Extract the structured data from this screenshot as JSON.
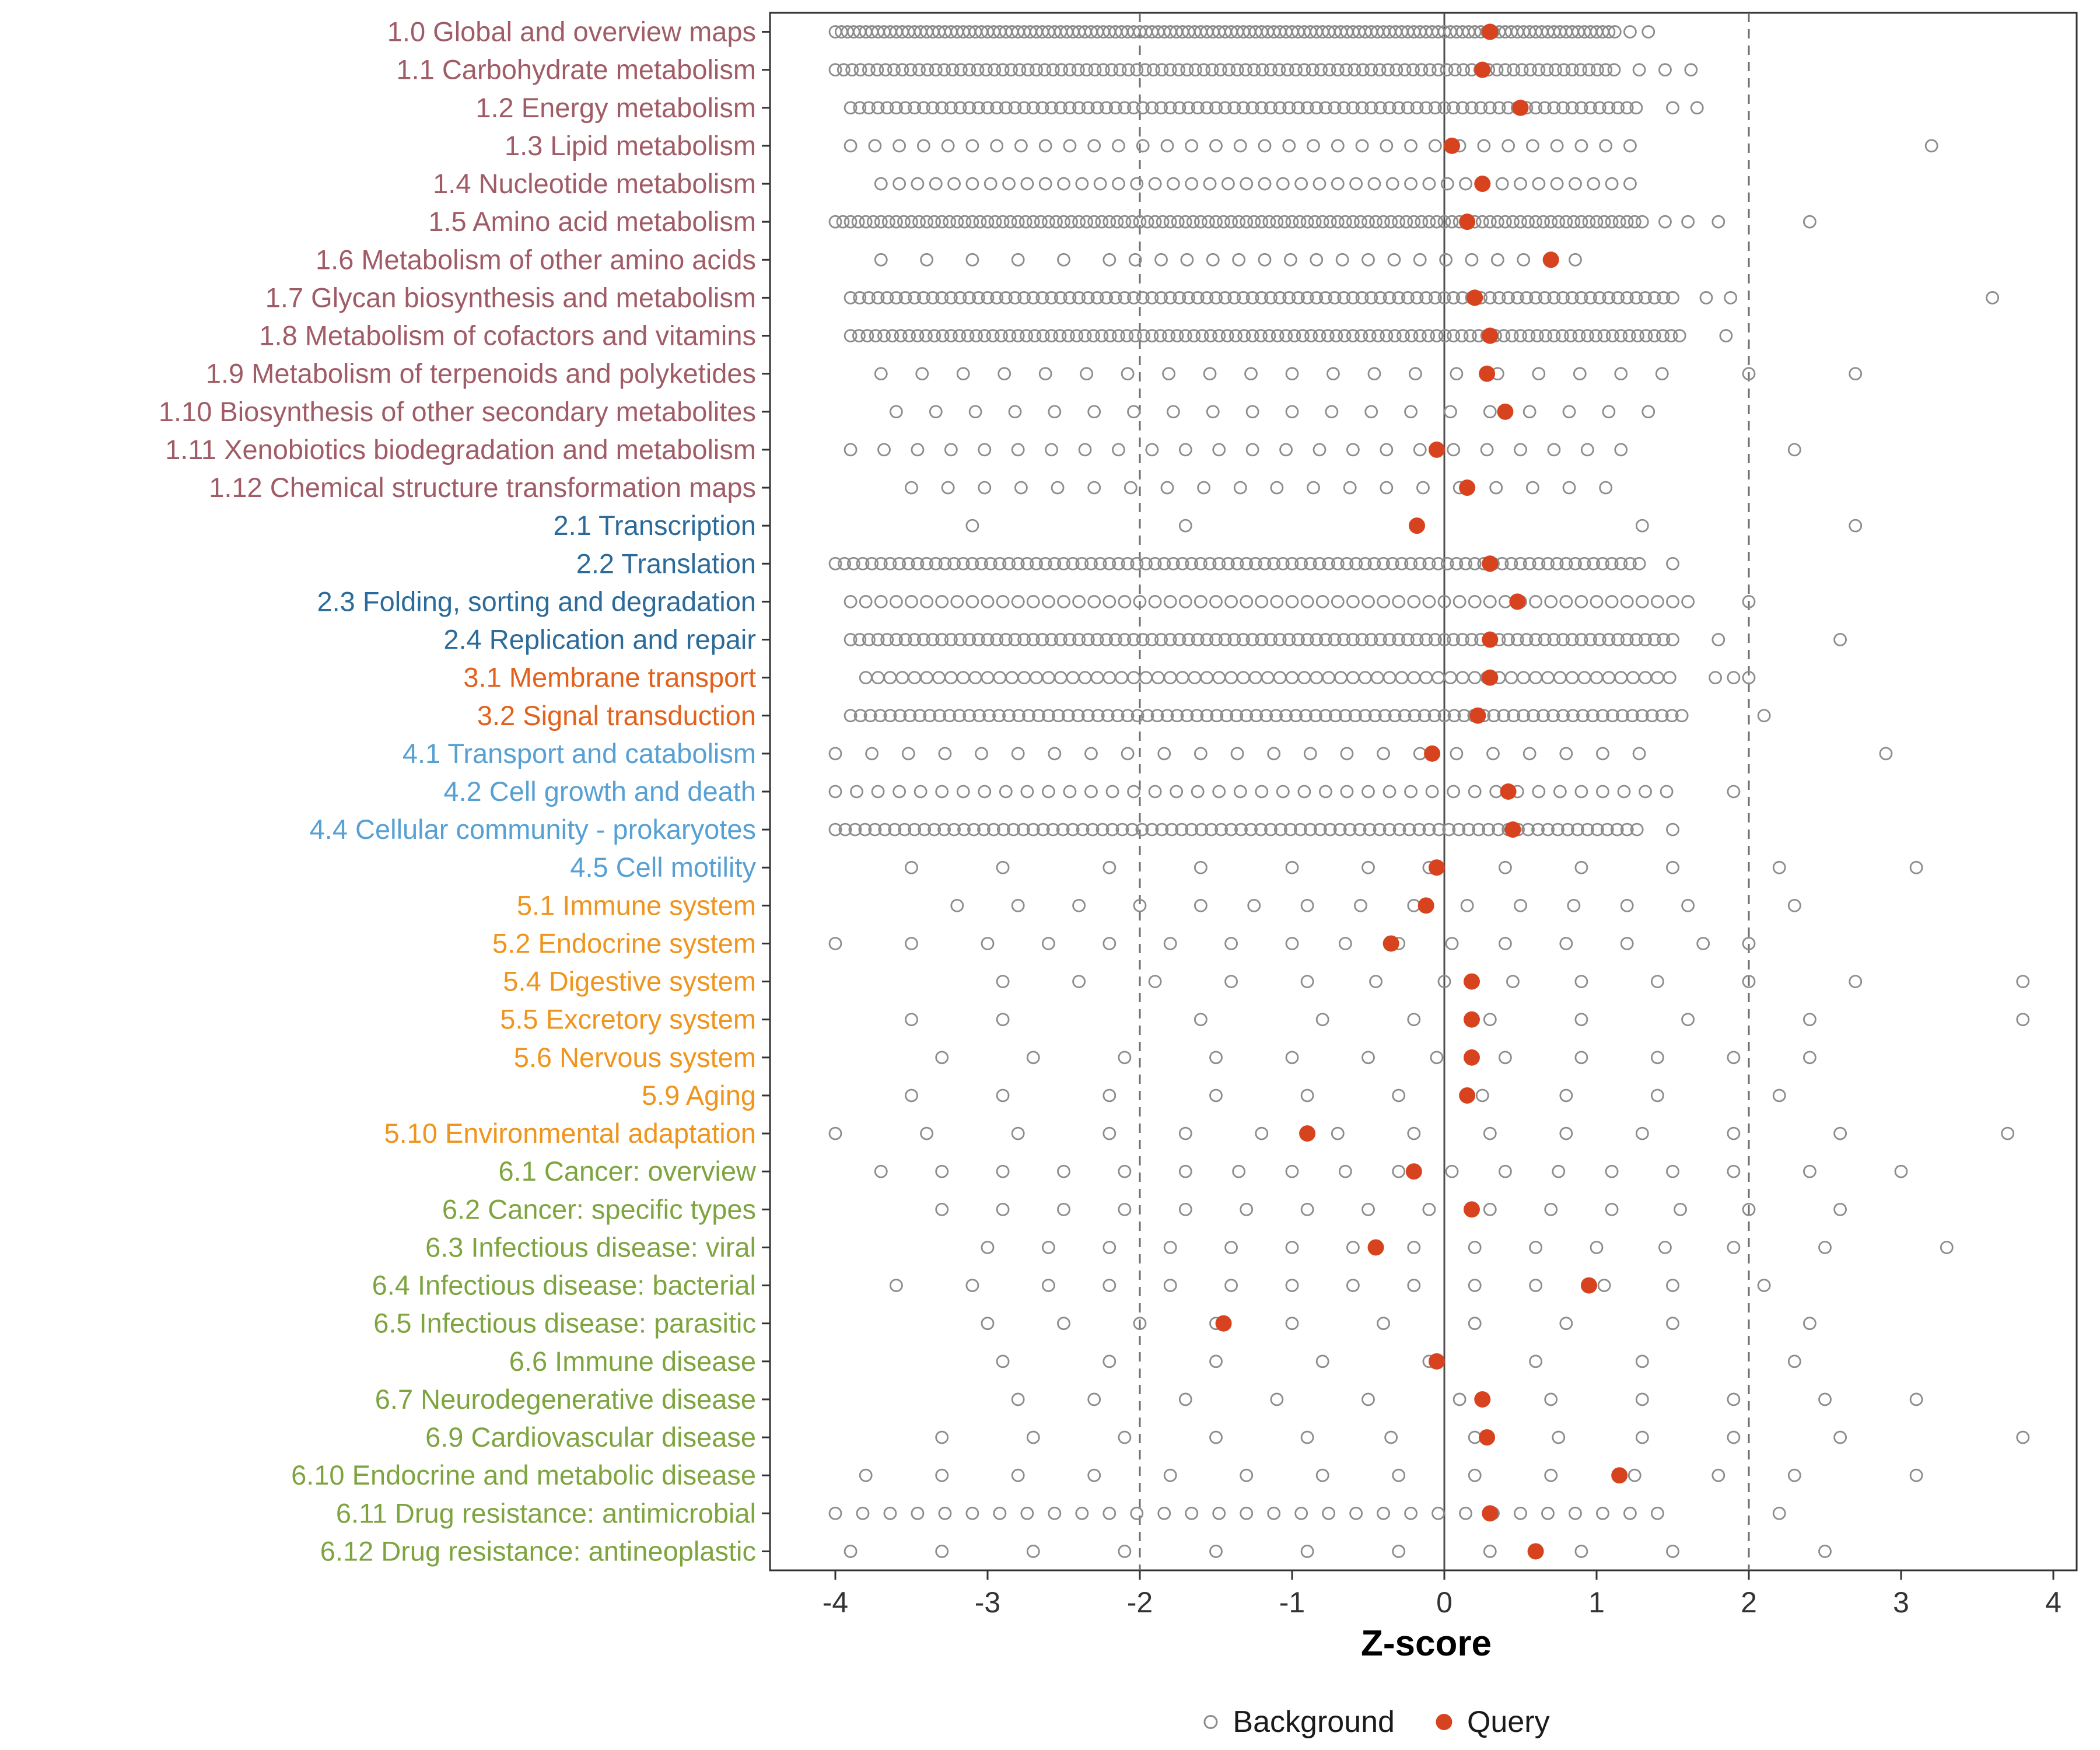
{
  "chart_data": {
    "type": "scatter",
    "title": "",
    "xlabel": "Z-score",
    "ylabel": "",
    "xlim": [
      -4.4,
      4.2
    ],
    "x_ticks": [
      -4,
      -3,
      -2,
      -1,
      0,
      1,
      2,
      3,
      4
    ],
    "grid": false,
    "reference_lines": {
      "solid": [
        0
      ],
      "dashed": [
        -2,
        2
      ]
    },
    "point_colors": {
      "background": "#8C8C8C",
      "query": "#D7431E"
    },
    "axis_colors": {
      "ticks": "#333333",
      "panel_border": "#333333",
      "tick_label": "#333333"
    },
    "group_colors": {
      "metabolism": "#A05C66",
      "genetic_information_processing": "#2B6A99",
      "environmental_information_processing": "#E2611B",
      "cellular_processes": "#57A0D3",
      "organismal_systems": "#EF941D",
      "human_diseases": "#7EA43F"
    },
    "legend": [
      {
        "label": "Background",
        "type": "open"
      },
      {
        "label": "Query",
        "type": "filled"
      }
    ],
    "rows": [
      {
        "label": "1.0 Global and overview maps",
        "group": "metabolism",
        "query": 0.3,
        "background": {
          "runs": [
            [
              -4.0,
              1.12,
              0.04
            ]
          ],
          "points": [
            1.22,
            1.34
          ]
        }
      },
      {
        "label": "1.1 Carbohydrate metabolism",
        "group": "metabolism",
        "query": 0.25,
        "background": {
          "runs": [
            [
              -4.0,
              1.15,
              0.055
            ]
          ],
          "points": [
            1.28,
            1.45,
            1.62
          ]
        }
      },
      {
        "label": "1.2 Energy metabolism",
        "group": "metabolism",
        "query": 0.5,
        "background": {
          "runs": [
            [
              -3.9,
              1.28,
              0.06
            ]
          ],
          "points": [
            1.5,
            1.66
          ]
        }
      },
      {
        "label": "1.3 Lipid metabolism",
        "group": "metabolism",
        "query": 0.05,
        "background": {
          "runs": [
            [
              -3.9,
              1.3,
              0.16
            ]
          ],
          "points": [
            3.2
          ]
        }
      },
      {
        "label": "1.4 Nucleotide metabolism",
        "group": "metabolism",
        "query": 0.25,
        "background": {
          "runs": [
            [
              -3.7,
              1.3,
              0.12
            ]
          ],
          "points": []
        }
      },
      {
        "label": "1.5 Amino acid metabolism",
        "group": "metabolism",
        "query": 0.15,
        "background": {
          "runs": [
            [
              -4.0,
              1.3,
              0.05
            ]
          ],
          "points": [
            1.45,
            1.6,
            1.8,
            2.4
          ]
        }
      },
      {
        "label": "1.6 Metabolism of other amino acids",
        "group": "metabolism",
        "query": 0.7,
        "background": {
          "runs": [
            [
              -3.7,
              -2.4,
              0.3
            ],
            [
              -2.2,
              0.9,
              0.17
            ]
          ],
          "points": []
        }
      },
      {
        "label": "1.7 Glycan biosynthesis and metabolism",
        "group": "metabolism",
        "query": 0.2,
        "background": {
          "runs": [
            [
              -3.9,
              1.5,
              0.06
            ]
          ],
          "points": [
            1.72,
            1.88,
            3.6
          ]
        }
      },
      {
        "label": "1.8 Metabolism of cofactors and vitamins",
        "group": "metabolism",
        "query": 0.3,
        "background": {
          "runs": [
            [
              -3.9,
              1.55,
              0.055
            ]
          ],
          "points": [
            1.85
          ]
        }
      },
      {
        "label": "1.9 Metabolism of terpenoids and polyketides",
        "group": "metabolism",
        "query": 0.28,
        "background": {
          "runs": [
            [
              -3.7,
              1.5,
              0.27
            ]
          ],
          "points": [
            2.0,
            2.7
          ]
        }
      },
      {
        "label": "1.10 Biosynthesis of other secondary metabolites",
        "group": "metabolism",
        "query": 0.4,
        "background": {
          "runs": [
            [
              -3.6,
              1.35,
              0.26
            ]
          ],
          "points": []
        }
      },
      {
        "label": "1.11 Xenobiotics biodegradation and metabolism",
        "group": "metabolism",
        "query": -0.05,
        "background": {
          "runs": [
            [
              -3.9,
              1.3,
              0.22
            ]
          ],
          "points": [
            2.3
          ]
        }
      },
      {
        "label": "1.12 Chemical structure transformation maps",
        "group": "metabolism",
        "query": 0.15,
        "background": {
          "runs": [
            [
              -3.5,
              1.2,
              0.24
            ]
          ],
          "points": []
        }
      },
      {
        "label": "2.1 Transcription",
        "group": "genetic_information_processing",
        "query": -0.18,
        "background": {
          "runs": [],
          "points": [
            -3.1,
            -1.7,
            1.3,
            2.7
          ]
        }
      },
      {
        "label": "2.2 Translation",
        "group": "genetic_information_processing",
        "query": 0.3,
        "background": {
          "runs": [
            [
              -4.0,
              1.3,
              0.06
            ]
          ],
          "points": [
            1.5
          ]
        }
      },
      {
        "label": "2.3 Folding, sorting and degradation",
        "group": "genetic_information_processing",
        "query": 0.48,
        "background": {
          "runs": [
            [
              -3.9,
              1.6,
              0.1
            ]
          ],
          "points": [
            2.0
          ]
        }
      },
      {
        "label": "2.4 Replication and repair",
        "group": "genetic_information_processing",
        "query": 0.3,
        "background": {
          "runs": [
            [
              -3.9,
              1.5,
              0.06
            ]
          ],
          "points": [
            1.8,
            2.6
          ]
        }
      },
      {
        "label": "3.1 Membrane transport",
        "group": "environmental_information_processing",
        "query": 0.3,
        "background": {
          "runs": [
            [
              -3.8,
              1.5,
              0.08
            ]
          ],
          "points": [
            1.78,
            1.9,
            2.0
          ]
        }
      },
      {
        "label": "3.2 Signal transduction",
        "group": "environmental_information_processing",
        "query": 0.22,
        "background": {
          "runs": [
            [
              -3.9,
              1.6,
              0.065
            ]
          ],
          "points": [
            2.1
          ]
        }
      },
      {
        "label": "4.1 Transport and catabolism",
        "group": "cellular_processes",
        "query": -0.08,
        "background": {
          "runs": [
            [
              -4.0,
              1.3,
              0.24
            ]
          ],
          "points": [
            2.9
          ]
        }
      },
      {
        "label": "4.2 Cell growth and death",
        "group": "cellular_processes",
        "query": 0.42,
        "background": {
          "runs": [
            [
              -4.0,
              1.5,
              0.14
            ]
          ],
          "points": [
            1.9
          ]
        }
      },
      {
        "label": "4.4 Cellular community - prokaryotes",
        "group": "cellular_processes",
        "query": 0.45,
        "background": {
          "runs": [
            [
              -4.0,
              1.3,
              0.065
            ]
          ],
          "points": [
            1.5
          ]
        }
      },
      {
        "label": "4.5 Cell motility",
        "group": "cellular_processes",
        "query": -0.05,
        "background": {
          "runs": [],
          "points": [
            -3.5,
            -2.9,
            -2.2,
            -1.6,
            -1.0,
            -0.5,
            -0.1,
            0.4,
            0.9,
            1.5,
            2.2,
            3.1
          ]
        }
      },
      {
        "label": "5.1 Immune system",
        "group": "organismal_systems",
        "query": -0.12,
        "background": {
          "runs": [],
          "points": [
            -3.2,
            -2.8,
            -2.4,
            -2.0,
            -1.6,
            -1.25,
            -0.9,
            -0.55,
            -0.2,
            0.15,
            0.5,
            0.85,
            1.2,
            1.6,
            2.3
          ]
        }
      },
      {
        "label": "5.2 Endocrine system",
        "group": "organismal_systems",
        "query": -0.35,
        "background": {
          "runs": [],
          "points": [
            -4.0,
            -3.5,
            -3.0,
            -2.6,
            -2.2,
            -1.8,
            -1.4,
            -1.0,
            -0.65,
            -0.3,
            0.05,
            0.4,
            0.8,
            1.2,
            1.7,
            2.0
          ]
        }
      },
      {
        "label": "5.4 Digestive system",
        "group": "organismal_systems",
        "query": 0.18,
        "background": {
          "runs": [],
          "points": [
            -2.9,
            -2.4,
            -1.9,
            -1.4,
            -0.9,
            -0.45,
            0.0,
            0.45,
            0.9,
            1.4,
            2.0,
            2.7,
            3.8
          ]
        }
      },
      {
        "label": "5.5 Excretory system",
        "group": "organismal_systems",
        "query": 0.18,
        "background": {
          "runs": [],
          "points": [
            -3.5,
            -2.9,
            -1.6,
            -0.8,
            -0.2,
            0.3,
            0.9,
            1.6,
            2.4,
            3.8
          ]
        }
      },
      {
        "label": "5.6 Nervous system",
        "group": "organismal_systems",
        "query": 0.18,
        "background": {
          "runs": [],
          "points": [
            -3.3,
            -2.7,
            -2.1,
            -1.5,
            -1.0,
            -0.5,
            -0.05,
            0.4,
            0.9,
            1.4,
            1.9,
            2.4
          ]
        }
      },
      {
        "label": "5.9 Aging",
        "group": "organismal_systems",
        "query": 0.15,
        "background": {
          "runs": [],
          "points": [
            -3.5,
            -2.9,
            -2.2,
            -1.5,
            -0.9,
            -0.3,
            0.25,
            0.8,
            1.4,
            2.2
          ]
        }
      },
      {
        "label": "5.10 Environmental adaptation",
        "group": "organismal_systems",
        "query": -0.9,
        "background": {
          "runs": [],
          "points": [
            -4.0,
            -3.4,
            -2.8,
            -2.2,
            -1.7,
            -1.2,
            -0.7,
            -0.2,
            0.3,
            0.8,
            1.3,
            1.9,
            2.6,
            3.7
          ]
        }
      },
      {
        "label": "6.1 Cancer: overview",
        "group": "human_diseases",
        "query": -0.2,
        "background": {
          "runs": [],
          "points": [
            -3.7,
            -3.3,
            -2.9,
            -2.5,
            -2.1,
            -1.7,
            -1.35,
            -1.0,
            -0.65,
            -0.3,
            0.05,
            0.4,
            0.75,
            1.1,
            1.5,
            1.9,
            2.4,
            3.0
          ]
        }
      },
      {
        "label": "6.2 Cancer: specific types",
        "group": "human_diseases",
        "query": 0.18,
        "background": {
          "runs": [],
          "points": [
            -3.3,
            -2.9,
            -2.5,
            -2.1,
            -1.7,
            -1.3,
            -0.9,
            -0.5,
            -0.1,
            0.3,
            0.7,
            1.1,
            1.55,
            2.0,
            2.6
          ]
        }
      },
      {
        "label": "6.3 Infectious disease: viral",
        "group": "human_diseases",
        "query": -0.45,
        "background": {
          "runs": [],
          "points": [
            -3.0,
            -2.6,
            -2.2,
            -1.8,
            -1.4,
            -1.0,
            -0.6,
            -0.2,
            0.2,
            0.6,
            1.0,
            1.45,
            1.9,
            2.5,
            3.3
          ]
        }
      },
      {
        "label": "6.4 Infectious disease: bacterial",
        "group": "human_diseases",
        "query": 0.95,
        "background": {
          "runs": [],
          "points": [
            -3.6,
            -3.1,
            -2.6,
            -2.2,
            -1.8,
            -1.4,
            -1.0,
            -0.6,
            -0.2,
            0.2,
            0.6,
            1.05,
            1.5,
            2.1
          ]
        }
      },
      {
        "label": "6.5 Infectious disease: parasitic",
        "group": "human_diseases",
        "query": -1.45,
        "background": {
          "runs": [],
          "points": [
            -3.0,
            -2.5,
            -2.0,
            -1.5,
            -1.0,
            -0.4,
            0.2,
            0.8,
            1.5,
            2.4
          ]
        }
      },
      {
        "label": "6.6 Immune disease",
        "group": "human_diseases",
        "query": -0.05,
        "background": {
          "runs": [],
          "points": [
            -2.9,
            -2.2,
            -1.5,
            -0.8,
            -0.1,
            0.6,
            1.3,
            2.3
          ]
        }
      },
      {
        "label": "6.7 Neurodegenerative disease",
        "group": "human_diseases",
        "query": 0.25,
        "background": {
          "runs": [],
          "points": [
            -2.8,
            -2.3,
            -1.7,
            -1.1,
            -0.5,
            0.1,
            0.7,
            1.3,
            1.9,
            2.5,
            3.1
          ]
        }
      },
      {
        "label": "6.9 Cardiovascular disease",
        "group": "human_diseases",
        "query": 0.28,
        "background": {
          "runs": [],
          "points": [
            -3.3,
            -2.7,
            -2.1,
            -1.5,
            -0.9,
            -0.35,
            0.2,
            0.75,
            1.3,
            1.9,
            2.6,
            3.8
          ]
        }
      },
      {
        "label": "6.10 Endocrine and metabolic disease",
        "group": "human_diseases",
        "query": 1.15,
        "background": {
          "runs": [],
          "points": [
            -3.8,
            -3.3,
            -2.8,
            -2.3,
            -1.8,
            -1.3,
            -0.8,
            -0.3,
            0.2,
            0.7,
            1.25,
            1.8,
            2.3,
            3.1
          ]
        }
      },
      {
        "label": "6.11 Drug resistance: antimicrobial",
        "group": "human_diseases",
        "query": 0.3,
        "background": {
          "runs": [
            [
              -4.0,
              1.5,
              0.18
            ]
          ],
          "points": [
            2.2
          ]
        }
      },
      {
        "label": "6.12 Drug resistance: antineoplastic",
        "group": "human_diseases",
        "query": 0.6,
        "background": {
          "runs": [],
          "points": [
            -3.9,
            -3.3,
            -2.7,
            -2.1,
            -1.5,
            -0.9,
            -0.3,
            0.3,
            0.9,
            1.5,
            2.5
          ]
        }
      }
    ]
  }
}
